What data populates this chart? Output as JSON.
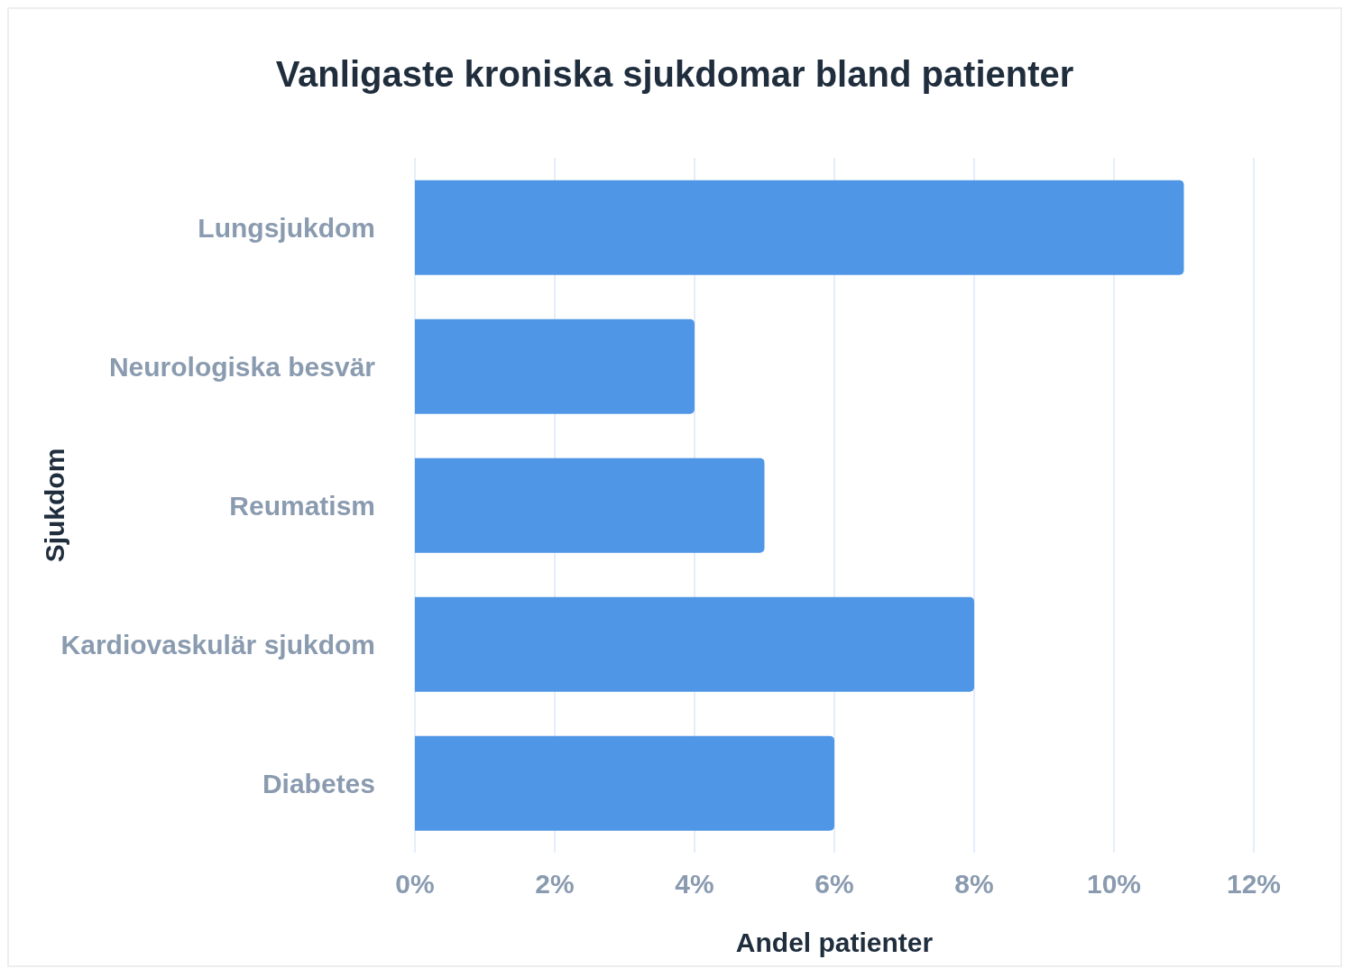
{
  "chart_data": {
    "type": "bar",
    "orientation": "horizontal",
    "title": "Vanligaste kroniska sjukdomar bland patienter",
    "xlabel": "Andel patienter",
    "ylabel": "Sjukdom",
    "categories": [
      "Lungsjukdom",
      "Neurologiska besvär",
      "Reumatism",
      "Kardiovaskulär sjukdom",
      "Diabetes"
    ],
    "values": [
      11,
      4,
      5,
      8,
      6
    ],
    "color": "#4f96e6",
    "xlim": [
      0,
      12
    ],
    "xticks": [
      {
        "value": 0,
        "label": "0%"
      },
      {
        "value": 2,
        "label": "2%"
      },
      {
        "value": 4,
        "label": "4%"
      },
      {
        "value": 6,
        "label": "6%"
      },
      {
        "value": 8,
        "label": "8%"
      },
      {
        "value": 10,
        "label": "10%"
      },
      {
        "value": 12,
        "label": "12%"
      }
    ],
    "grid": "x"
  }
}
